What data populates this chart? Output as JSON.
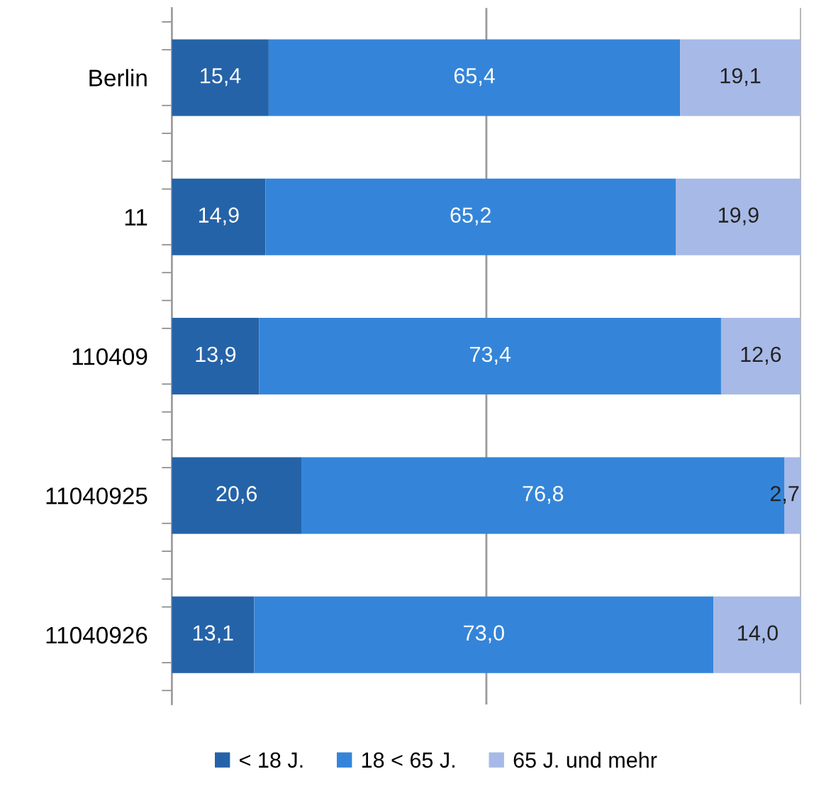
{
  "chart_data": {
    "type": "bar",
    "orientation": "horizontal",
    "stacked": true,
    "categories": [
      "Berlin",
      "11",
      "110409",
      "11040925",
      "11040926"
    ],
    "series": [
      {
        "name": "< 18 J.",
        "color": "#2563a8",
        "values": [
          15.4,
          14.9,
          13.9,
          20.6,
          13.1
        ],
        "value_labels": [
          "15,4",
          "14,9",
          "13,9",
          "20,6",
          "13,1"
        ]
      },
      {
        "name": "18 < 65 J.",
        "color": "#3485d9",
        "values": [
          65.4,
          65.2,
          73.4,
          76.8,
          73.0
        ],
        "value_labels": [
          "65,4",
          "65,2",
          "73,4",
          "76,8",
          "73,0"
        ]
      },
      {
        "name": "65 J. und mehr",
        "color": "#a7b9e6",
        "values": [
          19.1,
          19.9,
          12.6,
          2.7,
          14.0
        ],
        "value_labels": [
          "19,1",
          "19,9",
          "12,6",
          "2,7",
          "14,0"
        ]
      }
    ],
    "xlim": [
      0,
      100
    ],
    "xticks": [
      {
        "value": 0,
        "label": null
      },
      {
        "value": 50,
        "label": null
      },
      {
        "value": 100,
        "label": null
      }
    ],
    "tick_labels": "y",
    "grid": "x",
    "legend": "bottom"
  }
}
